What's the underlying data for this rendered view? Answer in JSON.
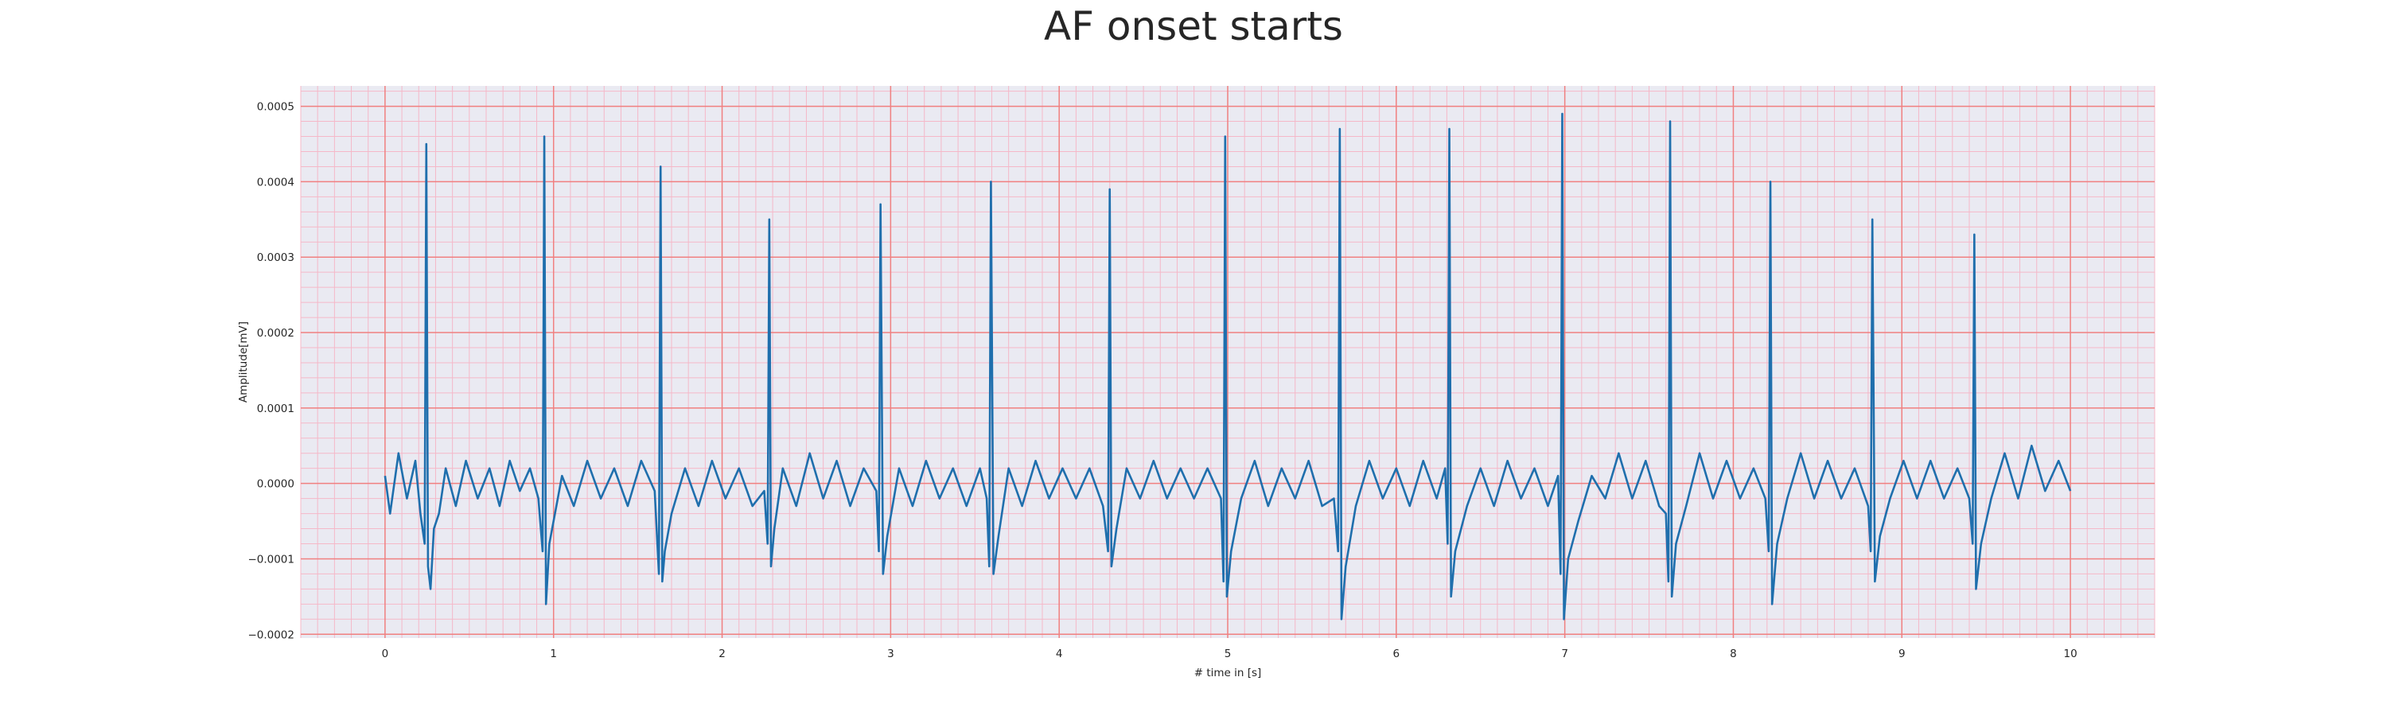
{
  "chart_data": {
    "type": "line",
    "title": "AF onset starts",
    "xlabel": "# time in [s]",
    "ylabel": "Amplitude[mV]",
    "xlim": [
      -0.5,
      10.5
    ],
    "ylim": [
      -0.000205,
      0.000527
    ],
    "xticks": [
      0,
      1,
      2,
      3,
      4,
      5,
      6,
      7,
      8,
      9,
      10
    ],
    "xtick_labels": [
      "0",
      "1",
      "2",
      "3",
      "4",
      "5",
      "6",
      "7",
      "8",
      "9",
      "10"
    ],
    "yticks": [
      -0.0002,
      -0.0001,
      0,
      0.0001,
      0.0002,
      0.0003,
      0.0004,
      0.0005
    ],
    "ytick_labels": [
      "−0.0002",
      "−0.0001",
      "0.0000",
      "0.0001",
      "0.0002",
      "0.0003",
      "0.0004",
      "0.0005"
    ],
    "grid": true,
    "minor_grid": true,
    "legend": "none",
    "colors": {
      "line": "#1f6fad",
      "background": "#eaeaf2",
      "major_grid": "#f08080",
      "minor_grid": "#f5b8c8"
    },
    "series": [
      {
        "values_note_x_s_y_mV": "",
        "x": [
          0,
          0.03,
          0.08,
          0.13,
          0.18,
          0.21,
          0.235,
          0.245,
          0.255,
          0.27,
          0.29,
          0.32,
          0.36,
          0.42,
          0.48,
          0.55,
          0.62,
          0.68,
          0.74,
          0.8,
          0.86,
          0.91,
          0.935,
          0.945,
          0.955,
          0.975,
          1.0,
          1.05,
          1.12,
          1.2,
          1.28,
          1.36,
          1.44,
          1.52,
          1.6,
          1.625,
          1.635,
          1.645,
          1.66,
          1.7,
          1.78,
          1.86,
          1.94,
          2.02,
          2.1,
          2.18,
          2.25,
          2.27,
          2.28,
          2.29,
          2.31,
          2.36,
          2.44,
          2.52,
          2.6,
          2.68,
          2.76,
          2.84,
          2.915,
          2.93,
          2.94,
          2.955,
          2.98,
          3.05,
          3.13,
          3.21,
          3.29,
          3.37,
          3.45,
          3.53,
          3.57,
          3.585,
          3.595,
          3.61,
          3.64,
          3.7,
          3.78,
          3.86,
          3.94,
          4.02,
          4.1,
          4.18,
          4.26,
          4.29,
          4.3,
          4.31,
          4.34,
          4.4,
          4.48,
          4.56,
          4.64,
          4.72,
          4.8,
          4.88,
          4.96,
          4.975,
          4.985,
          4.995,
          5.02,
          5.08,
          5.16,
          5.24,
          5.32,
          5.4,
          5.48,
          5.56,
          5.63,
          5.655,
          5.665,
          5.675,
          5.7,
          5.76,
          5.84,
          5.92,
          6.0,
          6.08,
          6.16,
          6.24,
          6.29,
          6.305,
          6.315,
          6.325,
          6.35,
          6.42,
          6.5,
          6.58,
          6.66,
          6.74,
          6.82,
          6.9,
          6.96,
          6.975,
          6.985,
          6.995,
          7.02,
          7.08,
          7.16,
          7.24,
          7.32,
          7.4,
          7.48,
          7.56,
          7.6,
          7.615,
          7.625,
          7.635,
          7.66,
          7.72,
          7.8,
          7.88,
          7.96,
          8.04,
          8.12,
          8.19,
          8.21,
          8.22,
          8.23,
          8.26,
          8.32,
          8.4,
          8.48,
          8.56,
          8.64,
          8.72,
          8.8,
          8.815,
          8.825,
          8.84,
          8.87,
          8.93,
          9.01,
          9.09,
          9.17,
          9.25,
          9.33,
          9.4,
          9.42,
          9.43,
          9.44,
          9.47,
          9.53,
          9.61,
          9.69,
          9.77,
          9.85,
          9.93,
          10.0
        ],
        "y": [
          1e-05,
          -4e-05,
          4e-05,
          -2e-05,
          3e-05,
          -4e-05,
          -8e-05,
          0.00045,
          -0.00011,
          -0.00014,
          -6e-05,
          -4e-05,
          2e-05,
          -3e-05,
          3e-05,
          -2e-05,
          2e-05,
          -3e-05,
          3e-05,
          -1e-05,
          2e-05,
          -2e-05,
          -9e-05,
          0.00046,
          -0.00016,
          -8e-05,
          -5e-05,
          1e-05,
          -3e-05,
          3e-05,
          -2e-05,
          2e-05,
          -3e-05,
          3e-05,
          -1e-05,
          -0.00012,
          0.00042,
          -0.00013,
          -9e-05,
          -4e-05,
          2e-05,
          -3e-05,
          3e-05,
          -2e-05,
          2e-05,
          -3e-05,
          -1e-05,
          -8e-05,
          0.00035,
          -0.00011,
          -6e-05,
          2e-05,
          -3e-05,
          4e-05,
          -2e-05,
          3e-05,
          -3e-05,
          2e-05,
          -1e-05,
          -9e-05,
          0.00037,
          -0.00012,
          -7e-05,
          2e-05,
          -3e-05,
          3e-05,
          -2e-05,
          2e-05,
          -3e-05,
          2e-05,
          -2e-05,
          -0.00011,
          0.0004,
          -0.00012,
          -7e-05,
          2e-05,
          -3e-05,
          3e-05,
          -2e-05,
          2e-05,
          -2e-05,
          2e-05,
          -3e-05,
          -9e-05,
          0.00039,
          -0.00011,
          -6e-05,
          2e-05,
          -2e-05,
          3e-05,
          -2e-05,
          2e-05,
          -2e-05,
          2e-05,
          -2e-05,
          -0.00013,
          0.00046,
          -0.00015,
          -9e-05,
          -2e-05,
          3e-05,
          -3e-05,
          2e-05,
          -2e-05,
          3e-05,
          -3e-05,
          -2e-05,
          -9e-05,
          0.00047,
          -0.00018,
          -0.00011,
          -3e-05,
          3e-05,
          -2e-05,
          2e-05,
          -3e-05,
          3e-05,
          -2e-05,
          2e-05,
          -8e-05,
          0.00047,
          -0.00015,
          -9e-05,
          -3e-05,
          2e-05,
          -3e-05,
          3e-05,
          -2e-05,
          2e-05,
          -3e-05,
          1e-05,
          -0.00012,
          0.00049,
          -0.00018,
          -0.0001,
          -5e-05,
          1e-05,
          -2e-05,
          4e-05,
          -2e-05,
          3e-05,
          -3e-05,
          -4e-05,
          -0.00013,
          0.00048,
          -0.00015,
          -8e-05,
          -3e-05,
          4e-05,
          -2e-05,
          3e-05,
          -2e-05,
          2e-05,
          -2e-05,
          -9e-05,
          0.0004,
          -0.00016,
          -8e-05,
          -2e-05,
          4e-05,
          -2e-05,
          3e-05,
          -2e-05,
          2e-05,
          -3e-05,
          -9e-05,
          0.00035,
          -0.00013,
          -7e-05,
          -2e-05,
          3e-05,
          -2e-05,
          3e-05,
          -2e-05,
          2e-05,
          -2e-05,
          -8e-05,
          0.00033,
          -0.00014,
          -8e-05,
          -2e-05,
          4e-05,
          -2e-05,
          5e-05,
          -1e-05,
          3e-05,
          -1e-05
        ]
      }
    ]
  }
}
